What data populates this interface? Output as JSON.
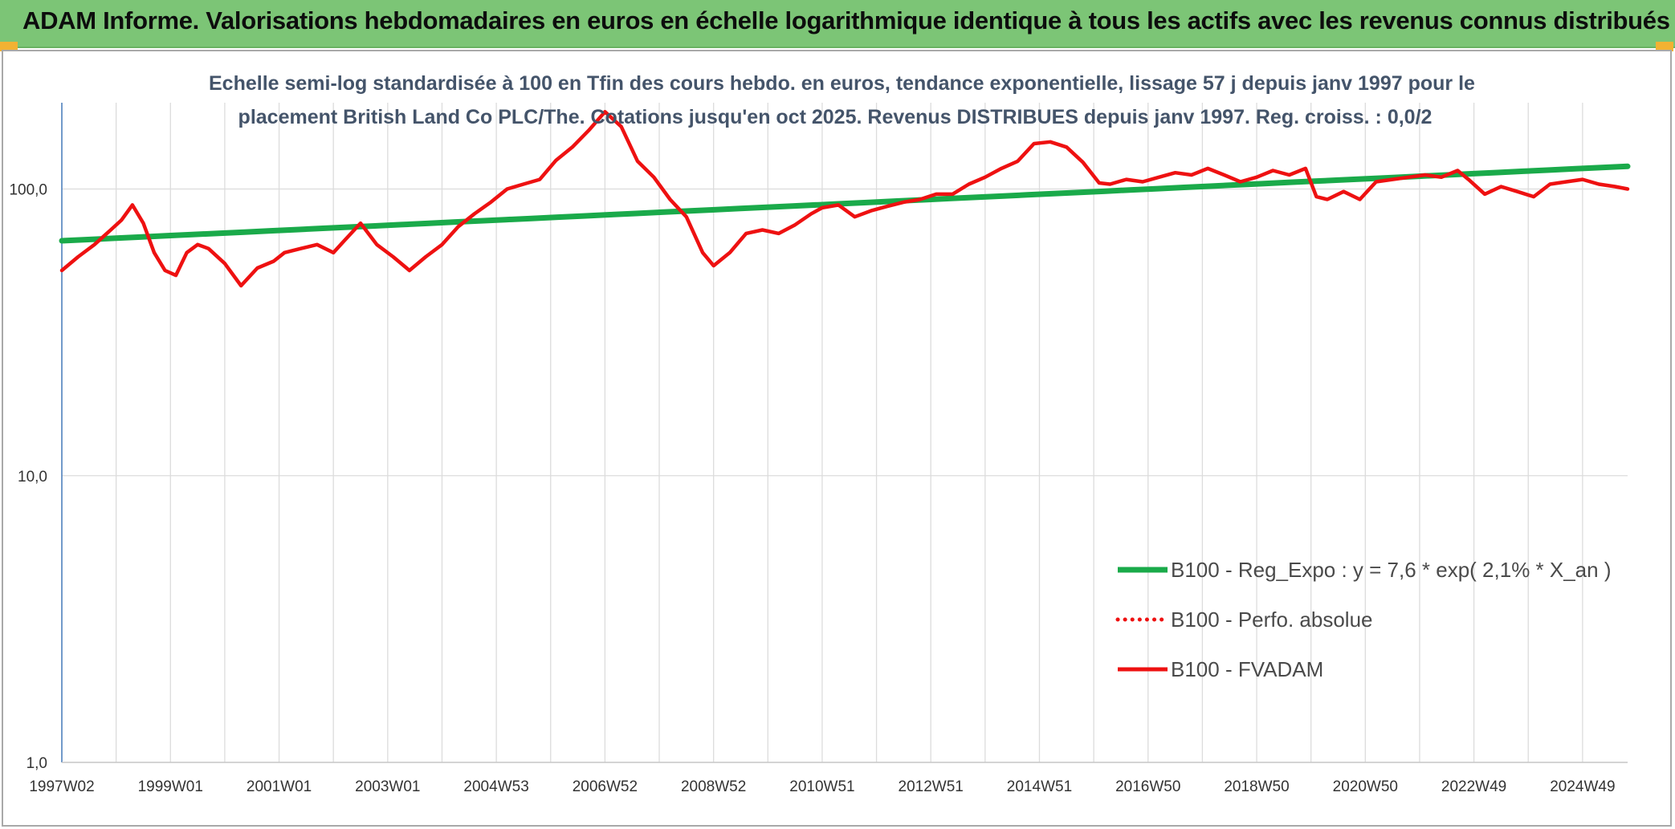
{
  "header": {
    "title": "ADAM Informe. Valorisations hebdomadaires en euros en échelle logarithmique identique à tous les actifs avec les revenus connus distribués"
  },
  "colors": {
    "header_bg": "#7cc576",
    "corner_accent": "#f2b233",
    "trend_line": "#1aaa4a",
    "fvadam_line": "#ee1111",
    "grid": "#dcdcdc",
    "axis": "#4f81bd"
  },
  "chart_data": {
    "type": "line",
    "title_line1": "Echelle semi-log standardisée à 100 en Tfin des cours hebdo. en euros, tendance exponentielle, lissage 57 j depuis janv 1997 pour le",
    "title_line2": "placement British Land Co PLC/The. Cotations jusqu'en oct 2025. Revenus DISTRIBUES depuis janv 1997. Reg. croiss. : 0,0/2",
    "y_scale": "log",
    "ylim": [
      1,
      200
    ],
    "y_ticks": [
      "1,0",
      "10,0",
      "100,0"
    ],
    "y_tick_values": [
      1,
      10,
      100
    ],
    "x_ticks": [
      "1997W02",
      "1999W01",
      "2001W01",
      "2003W01",
      "2004W53",
      "2006W52",
      "2008W52",
      "2010W51",
      "2012W51",
      "2014W51",
      "2016W50",
      "2018W50",
      "2020W50",
      "2022W49",
      "2024W49"
    ],
    "x_tick_years": [
      1997.0,
      1999.0,
      2001.0,
      2003.0,
      2005.0,
      2007.0,
      2009.0,
      2011.0,
      2013.0,
      2015.0,
      2017.0,
      2019.0,
      2021.0,
      2023.0,
      2025.0
    ],
    "xlim": [
      1997.0,
      2025.83
    ],
    "grid": "vertical",
    "legend_position": "bottom-right",
    "series": [
      {
        "name": "B100 - Reg_Expo : y = 7,6 * exp( 2,1% *  X_an )",
        "style": "solid-thick",
        "color": "#1aaa4a",
        "x": [
          1997.0,
          2025.83
        ],
        "y": [
          66,
          120
        ]
      },
      {
        "name": "B100 - Perfo. absolue",
        "style": "dotted",
        "color": "#ee1111",
        "x": [],
        "y": []
      },
      {
        "name": "B100 - FVADAM",
        "style": "solid",
        "color": "#ee1111",
        "x": [
          1997.0,
          1997.3,
          1997.6,
          1997.9,
          1998.1,
          1998.3,
          1998.5,
          1998.7,
          1998.9,
          1999.1,
          1999.3,
          1999.5,
          1999.7,
          2000.0,
          2000.3,
          2000.6,
          2000.9,
          2001.1,
          2001.4,
          2001.7,
          2002.0,
          2002.2,
          2002.5,
          2002.8,
          2003.1,
          2003.4,
          2003.7,
          2004.0,
          2004.3,
          2004.6,
          2004.9,
          2005.2,
          2005.5,
          2005.8,
          2006.1,
          2006.4,
          2006.7,
          2007.0,
          2007.3,
          2007.6,
          2007.9,
          2008.2,
          2008.5,
          2008.8,
          2009.0,
          2009.3,
          2009.6,
          2009.9,
          2010.2,
          2010.5,
          2010.8,
          2011.0,
          2011.3,
          2011.6,
          2011.9,
          2012.2,
          2012.5,
          2012.8,
          2013.1,
          2013.4,
          2013.7,
          2014.0,
          2014.3,
          2014.6,
          2014.9,
          2015.2,
          2015.5,
          2015.8,
          2016.1,
          2016.3,
          2016.6,
          2016.9,
          2017.2,
          2017.5,
          2017.8,
          2018.1,
          2018.4,
          2018.7,
          2019.0,
          2019.3,
          2019.6,
          2019.9,
          2020.1,
          2020.3,
          2020.6,
          2020.9,
          2021.2,
          2021.5,
          2021.8,
          2022.1,
          2022.4,
          2022.7,
          2022.9,
          2023.2,
          2023.5,
          2023.8,
          2024.1,
          2024.4,
          2024.7,
          2025.0,
          2025.3,
          2025.6,
          2025.83
        ],
        "y": [
          52,
          58,
          64,
          72,
          78,
          88,
          76,
          60,
          52,
          50,
          60,
          64,
          62,
          55,
          46,
          53,
          56,
          60,
          62,
          64,
          60,
          66,
          76,
          64,
          58,
          52,
          58,
          64,
          74,
          82,
          90,
          100,
          104,
          108,
          126,
          140,
          160,
          186,
          165,
          125,
          110,
          92,
          80,
          60,
          54,
          60,
          70,
          72,
          70,
          75,
          82,
          86,
          88,
          80,
          84,
          87,
          90,
          92,
          96,
          96,
          104,
          110,
          118,
          125,
          144,
          146,
          140,
          124,
          105,
          104,
          108,
          106,
          110,
          114,
          112,
          118,
          112,
          106,
          110,
          116,
          112,
          118,
          94,
          92,
          98,
          92,
          106,
          108,
          110,
          112,
          110,
          116,
          108,
          96,
          102,
          98,
          94,
          104,
          106,
          108,
          104,
          102,
          100
        ]
      }
    ]
  }
}
